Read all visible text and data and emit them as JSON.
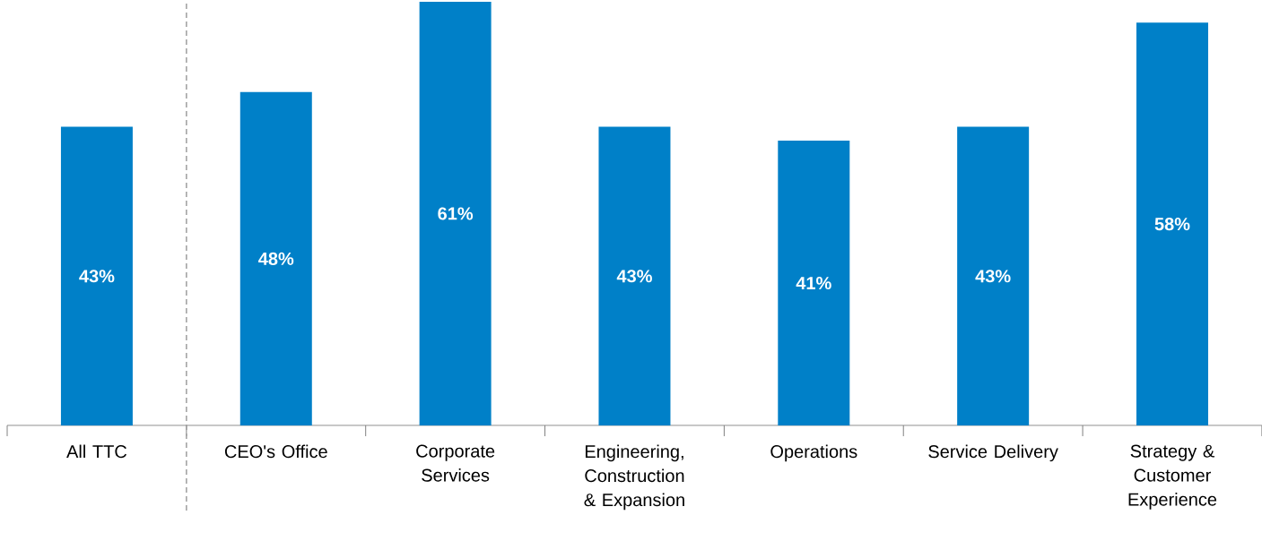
{
  "chart_data": {
    "type": "bar",
    "categories": [
      "All TTC",
      "CEO's Office",
      "Corporate Services",
      "Engineering, Construction & Expansion",
      "Operations",
      "Service Delivery",
      "Strategy & Customer Experience"
    ],
    "values": [
      43,
      48,
      61,
      43,
      41,
      43,
      58
    ],
    "value_labels": [
      "43%",
      "48%",
      "61%",
      "43%",
      "41%",
      "43%",
      "58%"
    ],
    "color": "#0080c8"
  }
}
